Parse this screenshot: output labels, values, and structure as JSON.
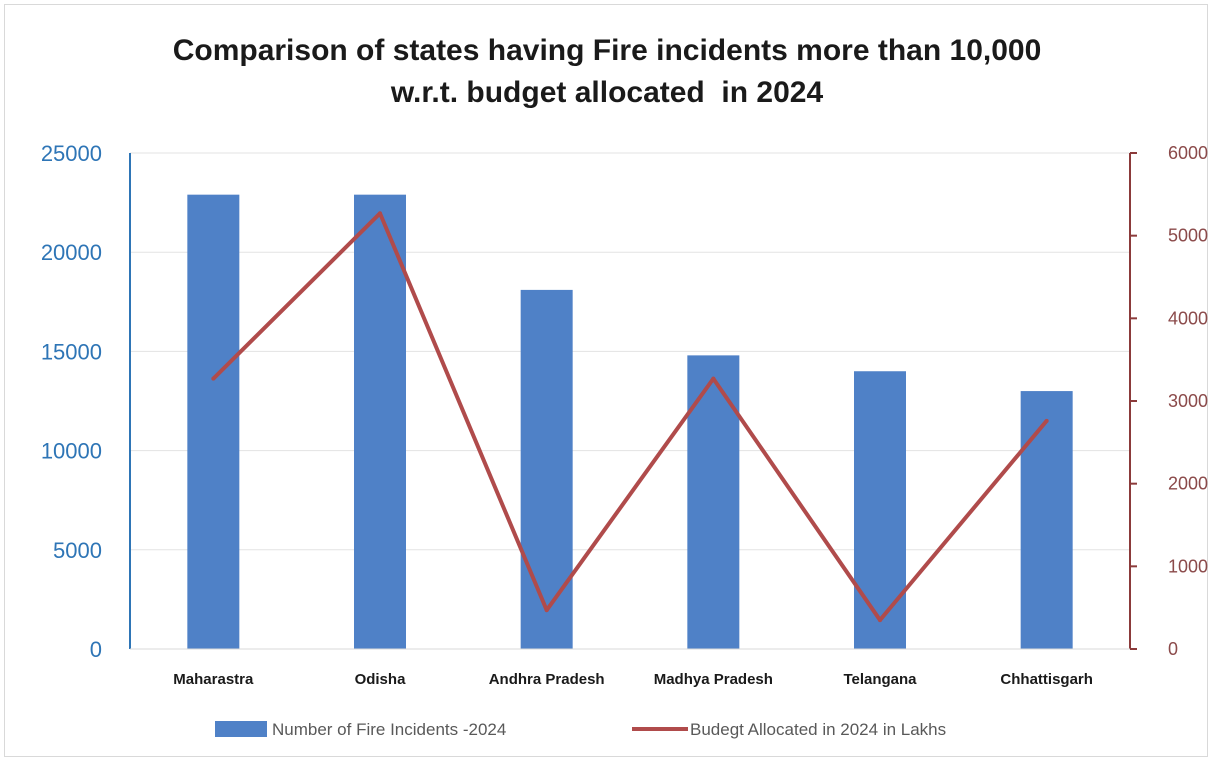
{
  "chart_data": {
    "type": "bar",
    "title_lines": [
      "Comparison of states having Fire incidents more than 10,000",
      "w.r.t. budget allocated  in 2024"
    ],
    "categories": [
      "Maharastra",
      "Odisha",
      "Andhra Pradesh",
      "Madhya Pradesh",
      "Telangana",
      "Chhattisgarh"
    ],
    "series": [
      {
        "name": "Number of Fire Incidents -2024",
        "type": "bar",
        "axis": "left",
        "color": "#4f81c7",
        "values": [
          22900,
          22900,
          18100,
          14800,
          14000,
          13000
        ]
      },
      {
        "name": "Budegt Allocated in 2024 in Lakhs",
        "type": "line",
        "axis": "right",
        "color": "#b04b4b",
        "values": [
          3270,
          5270,
          470,
          3270,
          350,
          2760
        ]
      }
    ],
    "y_left": {
      "range": [
        0,
        25000
      ],
      "ticks": [
        "0",
        "5000",
        "10000",
        "15000",
        "20000",
        "25000"
      ],
      "color": "#2e75b6"
    },
    "y_right": {
      "range": [
        0,
        6000
      ],
      "ticks": [
        "0",
        "1000",
        "2000",
        "3000",
        "4000",
        "5000",
        "6000"
      ],
      "color": "#8b3a3a"
    },
    "grid": true,
    "legend_position": "bottom"
  }
}
